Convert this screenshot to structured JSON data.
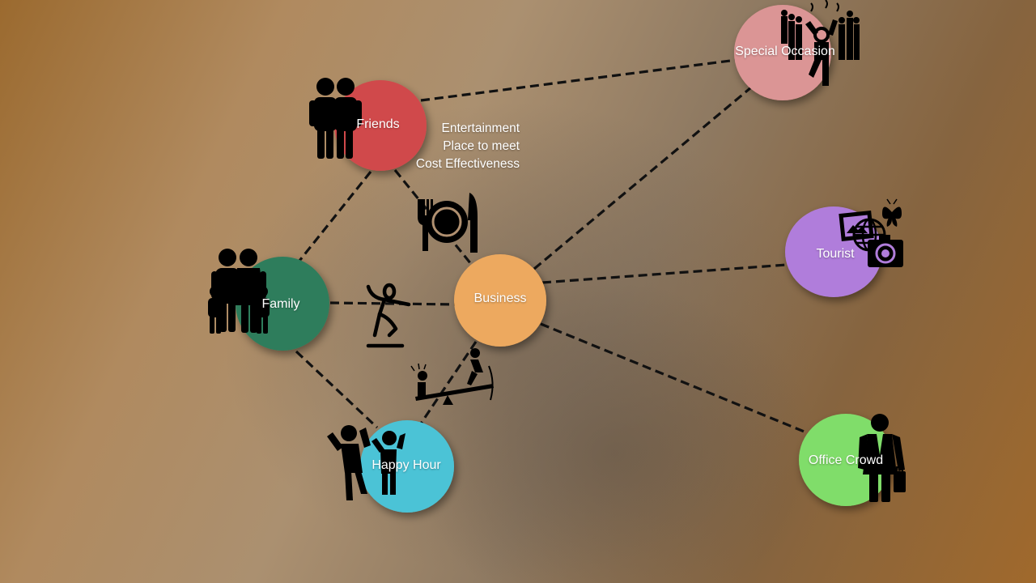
{
  "nodes": {
    "friends": {
      "label": "Friends",
      "color": "#d04a4c"
    },
    "family": {
      "label": "Family",
      "color": "#2e7d5c"
    },
    "business": {
      "label": "Business",
      "color": "#eda95e"
    },
    "happy_hour": {
      "label": "Happy Hour",
      "color": "#4cc3d6"
    },
    "special_occasion": {
      "label": "Special Occasion",
      "color": "#db9595"
    },
    "tourist": {
      "label": "Tourist",
      "color": "#b07ddb"
    },
    "office_crowd": {
      "label": "Office Crowd",
      "color": "#80dd6b"
    }
  },
  "benefits": [
    "Entertainment",
    "Place to meet",
    "Cost Effectiveness"
  ],
  "icons": {
    "friends": "two-people-icon",
    "family": "family-icon",
    "dining": "plate-fork-knife-icon",
    "dance": "dancing-person-icon",
    "playground": "seesaw-playground-icon",
    "happy_hour": "cheering-people-icon",
    "special_occasion": "party-crowd-icon",
    "tourist": "travel-camera-globe-icon",
    "office_crowd": "businessman-icon"
  },
  "colors": {
    "connector": "#111111",
    "label_text": "#ffffff",
    "icon": "#000000"
  }
}
